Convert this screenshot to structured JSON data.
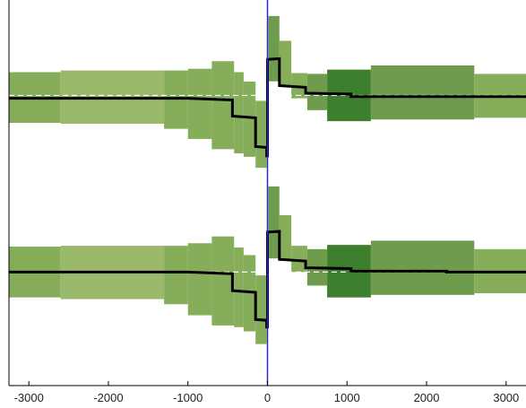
{
  "chart_data": {
    "type": "line",
    "title": "",
    "xlabel": "",
    "ylabel": "",
    "xlim": [
      -3250,
      3250
    ],
    "ylim": [
      0,
      1
    ],
    "x_ticks": [
      -3000,
      -2000,
      -1000,
      0,
      1000,
      2000,
      3000
    ],
    "x_tick_labels": [
      "-3000",
      "-2000",
      "-1000",
      "0",
      "1000",
      "2000",
      "3000"
    ],
    "y_ticks": [],
    "grid": false,
    "legend": "none",
    "colors": {
      "band_light": "#9ab96b",
      "band_mid": "#86ad59",
      "band_dark": "#6e9c4c",
      "band_darkest": "#3e7f2e",
      "line": "#000000",
      "baseline": "#ffffff",
      "zero_line": "#2b2bd6",
      "axis": "#000000"
    },
    "panels": [
      {
        "name": "",
        "baseline": 0.7525,
        "bands": [
          {
            "x0": -3250,
            "x1": -2600,
            "low": 0.6813,
            "high": 0.8128,
            "shade": "mid"
          },
          {
            "x0": -2600,
            "x1": -1300,
            "low": 0.6791,
            "high": 0.8172,
            "shade": "light"
          },
          {
            "x0": -1300,
            "x1": -1000,
            "low": 0.6659,
            "high": 0.8172,
            "shade": "mid"
          },
          {
            "x0": -1000,
            "x1": -700,
            "low": 0.6396,
            "high": 0.8216,
            "shade": "mid"
          },
          {
            "x0": -700,
            "x1": -420,
            "low": 0.6132,
            "high": 0.8413,
            "shade": "mid"
          },
          {
            "x0": -420,
            "x1": -300,
            "low": 0.6022,
            "high": 0.8128,
            "shade": "mid"
          },
          {
            "x0": -300,
            "x1": -150,
            "low": 0.5934,
            "high": 0.7886,
            "shade": "mid"
          },
          {
            "x0": -150,
            "x1": -10,
            "low": 0.5648,
            "high": 0.7385,
            "shade": "mid"
          },
          {
            "x0": 10,
            "x1": 150,
            "low": 0.789,
            "high": 0.9585,
            "shade": "dark"
          },
          {
            "x0": 150,
            "x1": 300,
            "low": 0.7758,
            "high": 0.8941,
            "shade": "mid"
          },
          {
            "x0": 300,
            "x1": 500,
            "low": 0.7451,
            "high": 0.8105,
            "shade": "mid"
          },
          {
            "x0": 500,
            "x1": 750,
            "low": 0.7143,
            "high": 0.8084,
            "shade": "dark"
          },
          {
            "x0": 750,
            "x1": 1300,
            "low": 0.6857,
            "high": 0.8194,
            "shade": "darkest"
          },
          {
            "x0": 1300,
            "x1": 2600,
            "low": 0.6901,
            "high": 0.8304,
            "shade": "dark"
          },
          {
            "x0": 2600,
            "x1": 3250,
            "low": 0.6945,
            "high": 0.8084,
            "shade": "mid"
          }
        ],
        "line": {
          "x": [
            -3250,
            -1000,
            -440,
            -440,
            -150,
            -150,
            -10,
            -10,
            0,
            0,
            150,
            150,
            480,
            480,
            1050,
            1050,
            3250
          ],
          "y": [
            0.7451,
            0.7451,
            0.7407,
            0.6989,
            0.6945,
            0.6198,
            0.6176,
            0.5956,
            0.5956,
            0.8458,
            0.848,
            0.778,
            0.7736,
            0.7583,
            0.7561,
            0.7495,
            0.7495
          ]
        }
      },
      {
        "name": "",
        "baseline": 0.2945,
        "bands": [
          {
            "x0": -3250,
            "x1": -2600,
            "low": 0.2286,
            "high": 0.3604,
            "shade": "mid"
          },
          {
            "x0": -2600,
            "x1": -1300,
            "low": 0.2242,
            "high": 0.3626,
            "shade": "light"
          },
          {
            "x0": -1300,
            "x1": -1000,
            "low": 0.211,
            "high": 0.3626,
            "shade": "mid"
          },
          {
            "x0": -1000,
            "x1": -700,
            "low": 0.1824,
            "high": 0.3692,
            "shade": "mid"
          },
          {
            "x0": -700,
            "x1": -420,
            "low": 0.156,
            "high": 0.3868,
            "shade": "mid"
          },
          {
            "x0": -420,
            "x1": -300,
            "low": 0.1516,
            "high": 0.3582,
            "shade": "mid"
          },
          {
            "x0": -300,
            "x1": -150,
            "low": 0.1406,
            "high": 0.3385,
            "shade": "mid"
          },
          {
            "x0": -150,
            "x1": -10,
            "low": 0.1077,
            "high": 0.2857,
            "shade": "mid"
          },
          {
            "x0": 10,
            "x1": 150,
            "low": 0.3297,
            "high": 0.5165,
            "shade": "dark"
          },
          {
            "x0": 150,
            "x1": 300,
            "low": 0.3231,
            "high": 0.4418,
            "shade": "mid"
          },
          {
            "x0": 300,
            "x1": 500,
            "low": 0.2945,
            "high": 0.3626,
            "shade": "mid"
          },
          {
            "x0": 500,
            "x1": 750,
            "low": 0.2593,
            "high": 0.3538,
            "shade": "dark"
          },
          {
            "x0": 750,
            "x1": 1300,
            "low": 0.2286,
            "high": 0.3648,
            "shade": "darkest"
          },
          {
            "x0": 1300,
            "x1": 2600,
            "low": 0.2352,
            "high": 0.3758,
            "shade": "dark"
          },
          {
            "x0": 2600,
            "x1": 3250,
            "low": 0.2396,
            "high": 0.3538,
            "shade": "mid"
          }
        ],
        "line": {
          "x": [
            -3250,
            -1000,
            -440,
            -440,
            -150,
            -150,
            -10,
            -10,
            0,
            0,
            150,
            150,
            480,
            480,
            1050,
            1050,
            2250,
            2250,
            3250
          ],
          "y": [
            0.2945,
            0.2945,
            0.2901,
            0.2462,
            0.2418,
            0.1714,
            0.1692,
            0.1516,
            0.1516,
            0.3978,
            0.4,
            0.3275,
            0.3231,
            0.3055,
            0.3033,
            0.2967,
            0.2967,
            0.2945,
            0.2945
          ]
        }
      }
    ]
  }
}
